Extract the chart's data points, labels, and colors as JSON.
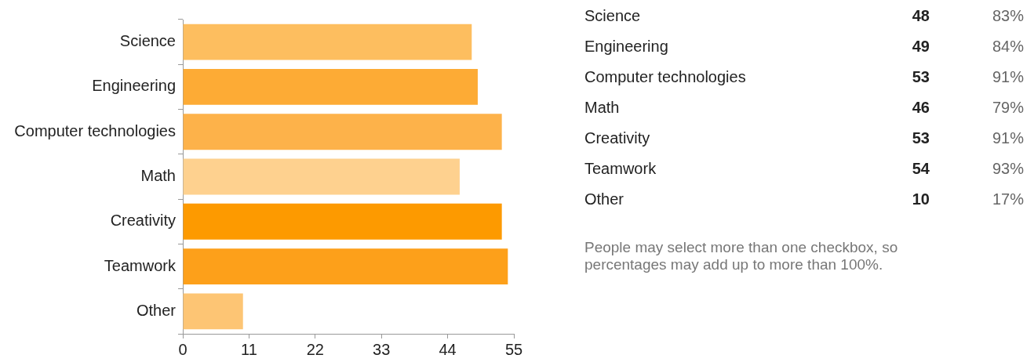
{
  "chart_data": {
    "type": "bar",
    "orientation": "horizontal",
    "categories": [
      "Science",
      "Engineering",
      "Computer technologies",
      "Math",
      "Creativity",
      "Teamwork",
      "Other"
    ],
    "values": [
      48,
      49,
      53,
      46,
      53,
      54,
      10
    ],
    "colors": [
      "#fdbe5f",
      "#fdab35",
      "#fdb24a",
      "#fed18f",
      "#fd9a00",
      "#fda01a",
      "#fdc574"
    ],
    "xlim": [
      0,
      55
    ],
    "xticks": [
      0,
      11,
      22,
      33,
      44,
      55
    ],
    "grid": false,
    "legend": false,
    "annotations": [
      "48",
      "83%",
      "49",
      "84%",
      "53",
      "91%",
      "46",
      "79%",
      "53",
      "91%",
      "54",
      "93%",
      "10",
      "17%",
      "People may select more than one checkbox, so percentages may add up to more than 100%."
    ]
  }
}
